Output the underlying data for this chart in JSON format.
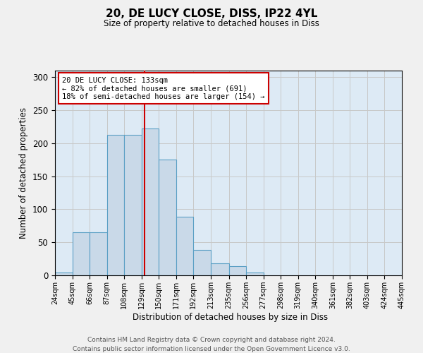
{
  "title": "20, DE LUCY CLOSE, DISS, IP22 4YL",
  "subtitle": "Size of property relative to detached houses in Diss",
  "xlabel": "Distribution of detached houses by size in Diss",
  "ylabel": "Number of detached properties",
  "bar_heights": [
    4,
    65,
    65,
    213,
    213,
    222,
    175,
    89,
    39,
    18,
    14,
    4
  ],
  "bin_edges": [
    24,
    45,
    66,
    87,
    108,
    129,
    150,
    171,
    192,
    213,
    235,
    256,
    277
  ],
  "all_xtick_labels": [
    "24sqm",
    "45sqm",
    "66sqm",
    "87sqm",
    "108sqm",
    "129sqm",
    "150sqm",
    "171sqm",
    "192sqm",
    "213sqm",
    "235sqm",
    "256sqm",
    "277sqm",
    "298sqm",
    "319sqm",
    "340sqm",
    "361sqm",
    "382sqm",
    "403sqm",
    "424sqm",
    "445sqm"
  ],
  "all_xtick_positions": [
    24,
    45,
    66,
    87,
    108,
    129,
    150,
    171,
    192,
    213,
    235,
    256,
    277,
    298,
    319,
    340,
    361,
    382,
    403,
    424,
    445
  ],
  "bar_color": "#c9d9e8",
  "bar_edge_color": "#5a9fc4",
  "red_line_x": 133,
  "red_line_color": "#cc0000",
  "annotation_text": "20 DE LUCY CLOSE: 133sqm\n← 82% of detached houses are smaller (691)\n18% of semi-detached houses are larger (154) →",
  "annotation_box_color": "#ffffff",
  "annotation_box_edge_color": "#cc0000",
  "ylim": [
    0,
    310
  ],
  "yticks": [
    0,
    50,
    100,
    150,
    200,
    250,
    300
  ],
  "grid_color": "#c8c8c8",
  "bg_color": "#ddeaf5",
  "footer_line1": "Contains HM Land Registry data © Crown copyright and database right 2024.",
  "footer_line2": "Contains public sector information licensed under the Open Government Licence v3.0."
}
